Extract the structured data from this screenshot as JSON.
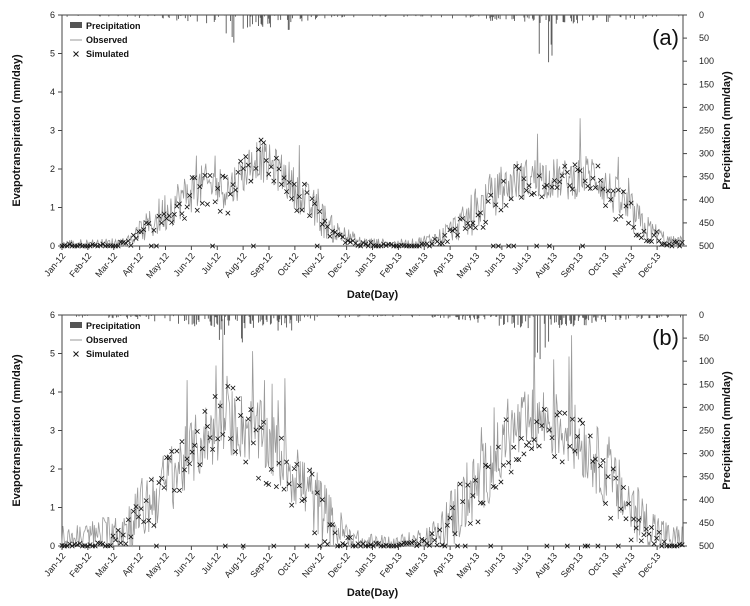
{
  "chart_data": [
    {
      "type": "line",
      "panel_label": "(a)",
      "xlabel": "Date(Day)",
      "ylabel": "Evapotranspiration (mm/day)",
      "y2label": "Precipitation (mm/day)",
      "ylim": [
        0,
        6
      ],
      "y2lim": [
        0,
        500
      ],
      "y2_inverted": true,
      "yticks": [
        "0",
        "1",
        "2",
        "3",
        "4",
        "5",
        "6"
      ],
      "y2ticks": [
        "0",
        "50",
        "100",
        "150",
        "200",
        "250",
        "300",
        "350",
        "400",
        "450",
        "500"
      ],
      "x_categories": [
        "Jan-12",
        "Feb-12",
        "Mar-12",
        "Apr-12",
        "May-12",
        "Jun-12",
        "Jul-12",
        "Aug-12",
        "Sep-12",
        "Oct-12",
        "Nov-12",
        "Dec-12",
        "Jan-13",
        "Feb-13",
        "Mar-13",
        "Apr-13",
        "May-13",
        "Jun-13",
        "Jul-13",
        "Aug-13",
        "Sep-13",
        "Oct-13",
        "Nov-13",
        "Dec-13"
      ],
      "legend": {
        "placement": "top-left",
        "entries": [
          "Precipitation",
          "Observed",
          "Simulated"
        ]
      },
      "series": [
        {
          "name": "Observed",
          "kind": "line",
          "color": "#9a9a9a",
          "values": [
            0.05,
            0.05,
            0.1,
            0.6,
            1.2,
            1.6,
            1.5,
            2.3,
            1.9,
            1.1,
            0.4,
            0.1,
            0.05,
            0.05,
            0.2,
            0.6,
            1.2,
            1.7,
            1.8,
            1.7,
            1.9,
            1.2,
            0.5,
            0.1
          ]
        },
        {
          "name": "Simulated",
          "kind": "marker",
          "marker": "x",
          "values": [
            0.0,
            0.0,
            0.05,
            0.5,
            1.1,
            1.5,
            1.3,
            2.4,
            1.8,
            1.0,
            0.3,
            0.05,
            0.0,
            0.0,
            0.1,
            0.5,
            1.0,
            1.6,
            1.5,
            1.6,
            1.8,
            1.1,
            0.4,
            0.05
          ]
        },
        {
          "name": "Precipitation",
          "kind": "bar",
          "axis": "y2",
          "peaks": [
            {
              "month": "Jun-12",
              "value": 25
            },
            {
              "month": "Jul-12",
              "value": 60
            },
            {
              "month": "Aug-12",
              "value": 30
            },
            {
              "month": "Sep-12",
              "value": 35
            },
            {
              "month": "Jul-13",
              "value": 115
            },
            {
              "month": "Aug-13",
              "value": 20
            }
          ]
        }
      ]
    },
    {
      "type": "line",
      "panel_label": "(b)",
      "xlabel": "Date(Day)",
      "ylabel": "Evapotranspiration (mm/day)",
      "y2label": "Precipitation (mm/day)",
      "ylim": [
        0,
        6
      ],
      "y2lim": [
        0,
        500
      ],
      "y2_inverted": true,
      "yticks": [
        "0",
        "1",
        "2",
        "3",
        "4",
        "5",
        "6"
      ],
      "y2ticks": [
        "0",
        "50",
        "100",
        "150",
        "200",
        "250",
        "300",
        "350",
        "400",
        "450",
        "500"
      ],
      "x_categories": [
        "Jan-12",
        "Feb-12",
        "Mar-12",
        "Apr-12",
        "May-12",
        "Jun-12",
        "Jul-12",
        "Aug-12",
        "Sep-12",
        "Oct-12",
        "Nov-12",
        "Dec-12",
        "Jan-13",
        "Feb-13",
        "Mar-13",
        "Apr-13",
        "May-13",
        "Jun-13",
        "Jul-13",
        "Aug-13",
        "Sep-13",
        "Oct-13",
        "Nov-13",
        "Dec-13"
      ],
      "legend": {
        "placement": "top-left",
        "entries": [
          "Precipitation",
          "Observed",
          "Simulated"
        ]
      },
      "series": [
        {
          "name": "Observed",
          "kind": "line",
          "color": "#9a9a9a",
          "values": [
            0.2,
            0.3,
            0.5,
            1.2,
            2.0,
            2.8,
            3.2,
            3.0,
            2.3,
            1.4,
            0.5,
            0.1,
            0.05,
            0.1,
            0.3,
            1.1,
            2.0,
            3.0,
            3.3,
            3.0,
            2.4,
            1.4,
            0.6,
            0.2
          ]
        },
        {
          "name": "Simulated",
          "kind": "marker",
          "marker": "x",
          "values": [
            0.0,
            0.0,
            0.3,
            1.0,
            1.9,
            3.0,
            3.4,
            2.6,
            2.2,
            1.3,
            0.3,
            0.0,
            0.0,
            0.0,
            0.2,
            1.0,
            1.8,
            2.9,
            3.0,
            2.8,
            2.3,
            1.2,
            0.4,
            0.0
          ]
        },
        {
          "name": "Precipitation",
          "kind": "bar",
          "axis": "y2",
          "peaks": [
            {
              "month": "Jun-12",
              "value": 25
            },
            {
              "month": "Jul-12",
              "value": 60
            },
            {
              "month": "Aug-12",
              "value": 30
            },
            {
              "month": "Sep-12",
              "value": 35
            },
            {
              "month": "Jul-13",
              "value": 115
            },
            {
              "month": "Aug-13",
              "value": 20
            }
          ]
        }
      ]
    }
  ]
}
